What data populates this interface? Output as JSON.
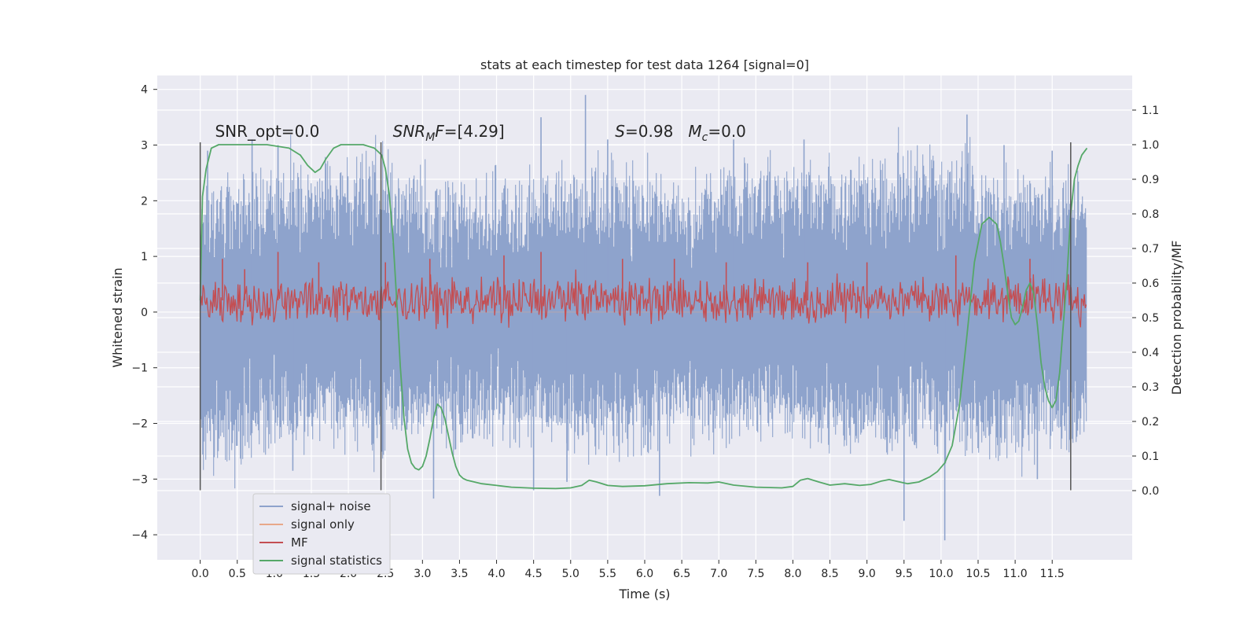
{
  "chart_data": {
    "type": "line",
    "title": "stats at each timestep for test data 1264 [signal=0]",
    "xlabel": "Time (s)",
    "ylabel_left": "Whitened strain",
    "ylabel_right": "Detection probability/MF",
    "xlim": [
      -0.58,
      12.58
    ],
    "ylim_left": [
      -4.45,
      4.25
    ],
    "ylim_right": [
      -0.2,
      1.2
    ],
    "x_ticks": [
      0.0,
      0.5,
      1.0,
      1.5,
      2.0,
      2.5,
      3.0,
      3.5,
      4.0,
      4.5,
      5.0,
      5.5,
      6.0,
      6.5,
      7.0,
      7.5,
      8.0,
      8.5,
      9.0,
      9.5,
      10.0,
      10.5,
      11.0,
      11.5
    ],
    "x_tick_labels": [
      "0.0",
      "0.5",
      "1.0",
      "1.5",
      "2.0",
      "2.5",
      "3.0",
      "3.5",
      "4.0",
      "4.5",
      "5.0",
      "5.5",
      "6.0",
      "6.5",
      "7.0",
      "7.5",
      "8.0",
      "8.5",
      "9.0",
      "9.5",
      "10.0",
      "10.5",
      "11.0",
      "11.5"
    ],
    "y_left_ticks": [
      -4,
      -3,
      -2,
      -1,
      0,
      1,
      2,
      3,
      4
    ],
    "y_left_tick_labels": [
      "−4",
      "−3",
      "−2",
      "−1",
      "0",
      "1",
      "2",
      "3",
      "4"
    ],
    "y_right_ticks": [
      0.0,
      0.1,
      0.2,
      0.3,
      0.4,
      0.5,
      0.6,
      0.7,
      0.8,
      0.9,
      1.0,
      1.1
    ],
    "y_right_tick_labels": [
      "0.0",
      "0.1",
      "0.2",
      "0.3",
      "0.4",
      "0.5",
      "0.6",
      "0.7",
      "0.8",
      "0.9",
      "1.0",
      "1.1"
    ],
    "grid": true,
    "legend_position": "lower-left",
    "annotations": [
      {
        "text": "SNR_opt=0.0",
        "x": 0.2,
        "y": 3.15
      },
      {
        "text": "SNR_MF=[4.29]",
        "x": 2.6,
        "y": 3.15
      },
      {
        "text": "S=0.98   M_c=0.0",
        "x": 5.6,
        "y": 3.15
      }
    ],
    "vertical_lines": [
      0.0,
      2.44,
      11.75
    ],
    "series": [
      {
        "name": "signal+ noise",
        "axis": "left",
        "color": "#8ea3cc",
        "x_range": [
          0.0,
          11.97
        ],
        "envelope_top": [
          2.1,
          2.6,
          2.8,
          2.2,
          2.4,
          2.6,
          2.3,
          2.7,
          2.5,
          2.9,
          2.4,
          2.5
        ],
        "envelope_bottom": [
          -2.9,
          -2.2,
          -2.4,
          -2.3,
          -2.1,
          -2.5,
          -2.2,
          -2.0,
          -2.4,
          -2.2,
          -2.6,
          -2.2
        ],
        "spikes": [
          [
            0.1,
            2.9
          ],
          [
            0.7,
            3.1
          ],
          [
            1.05,
            3.0
          ],
          [
            1.25,
            -2.85
          ],
          [
            3.15,
            -3.35
          ],
          [
            4.5,
            -3.2
          ],
          [
            4.6,
            3.5
          ],
          [
            4.95,
            -3.05
          ],
          [
            5.2,
            3.9
          ],
          [
            5.5,
            3.1
          ],
          [
            6.2,
            -3.3
          ],
          [
            7.2,
            3.1
          ],
          [
            8.15,
            3.1
          ],
          [
            9.5,
            -3.75
          ],
          [
            10.05,
            -4.1
          ],
          [
            10.35,
            3.55
          ],
          [
            10.85,
            3.0
          ],
          [
            11.3,
            -3.0
          ],
          [
            11.5,
            2.9
          ]
        ]
      },
      {
        "name": "signal only",
        "axis": "left",
        "color": "#e8a88a",
        "x": [
          0.0,
          11.97
        ],
        "y": [
          0.0,
          0.0
        ]
      },
      {
        "name": "MF",
        "axis": "right",
        "color": "#c44e52",
        "x_range": [
          0.0,
          11.97
        ],
        "band": [
          0.5,
          0.6
        ],
        "spikes": [
          [
            0.3,
            0.67
          ],
          [
            0.6,
            0.64
          ],
          [
            1.05,
            0.69
          ],
          [
            1.6,
            0.66
          ],
          [
            2.5,
            0.66
          ],
          [
            3.1,
            0.67
          ],
          [
            4.1,
            0.68
          ],
          [
            4.6,
            0.69
          ],
          [
            5.7,
            0.67
          ],
          [
            6.4,
            0.67
          ],
          [
            7.1,
            0.66
          ],
          [
            8.2,
            0.66
          ],
          [
            9.0,
            0.66
          ],
          [
            10.2,
            0.68
          ],
          [
            11.2,
            0.67
          ]
        ]
      },
      {
        "name": "signal statistics",
        "axis": "right",
        "color": "#55a868",
        "x": [
          0.0,
          0.03,
          0.08,
          0.15,
          0.25,
          0.4,
          0.6,
          0.9,
          1.2,
          1.35,
          1.45,
          1.55,
          1.62,
          1.7,
          1.8,
          1.9,
          2.0,
          2.2,
          2.35,
          2.45,
          2.5,
          2.55,
          2.6,
          2.65,
          2.7,
          2.75,
          2.8,
          2.85,
          2.9,
          2.95,
          3.0,
          3.05,
          3.1,
          3.15,
          3.2,
          3.25,
          3.3,
          3.35,
          3.4,
          3.45,
          3.5,
          3.55,
          3.6,
          3.7,
          3.8,
          4.0,
          4.2,
          4.5,
          4.8,
          5.0,
          5.15,
          5.25,
          5.35,
          5.5,
          5.7,
          6.0,
          6.3,
          6.6,
          6.85,
          7.0,
          7.2,
          7.5,
          7.85,
          8.0,
          8.1,
          8.2,
          8.35,
          8.5,
          8.7,
          8.9,
          9.05,
          9.2,
          9.3,
          9.4,
          9.55,
          9.7,
          9.85,
          9.95,
          10.05,
          10.15,
          10.25,
          10.35,
          10.45,
          10.55,
          10.65,
          10.75,
          10.8,
          10.85,
          10.9,
          10.95,
          11.0,
          11.05,
          11.1,
          11.15,
          11.2,
          11.25,
          11.3,
          11.35,
          11.4,
          11.45,
          11.5,
          11.55,
          11.6,
          11.65,
          11.7,
          11.75,
          11.8,
          11.85,
          11.9,
          11.97
        ],
        "y": [
          0.55,
          0.85,
          0.93,
          0.99,
          1.0,
          1.0,
          1.0,
          1.0,
          0.99,
          0.97,
          0.94,
          0.92,
          0.93,
          0.96,
          0.99,
          1.0,
          1.0,
          1.0,
          0.99,
          0.97,
          0.93,
          0.86,
          0.74,
          0.56,
          0.36,
          0.21,
          0.12,
          0.08,
          0.065,
          0.06,
          0.07,
          0.1,
          0.15,
          0.21,
          0.25,
          0.24,
          0.21,
          0.16,
          0.11,
          0.07,
          0.045,
          0.035,
          0.03,
          0.025,
          0.02,
          0.015,
          0.01,
          0.007,
          0.006,
          0.008,
          0.015,
          0.03,
          0.025,
          0.015,
          0.012,
          0.014,
          0.02,
          0.023,
          0.022,
          0.025,
          0.016,
          0.01,
          0.008,
          0.012,
          0.03,
          0.035,
          0.025,
          0.016,
          0.02,
          0.015,
          0.018,
          0.028,
          0.032,
          0.027,
          0.02,
          0.025,
          0.04,
          0.055,
          0.08,
          0.13,
          0.25,
          0.45,
          0.66,
          0.77,
          0.79,
          0.77,
          0.72,
          0.65,
          0.57,
          0.5,
          0.48,
          0.49,
          0.53,
          0.58,
          0.6,
          0.57,
          0.48,
          0.37,
          0.3,
          0.26,
          0.24,
          0.26,
          0.34,
          0.48,
          0.62,
          0.8,
          0.9,
          0.94,
          0.97,
          0.99
        ]
      }
    ]
  }
}
